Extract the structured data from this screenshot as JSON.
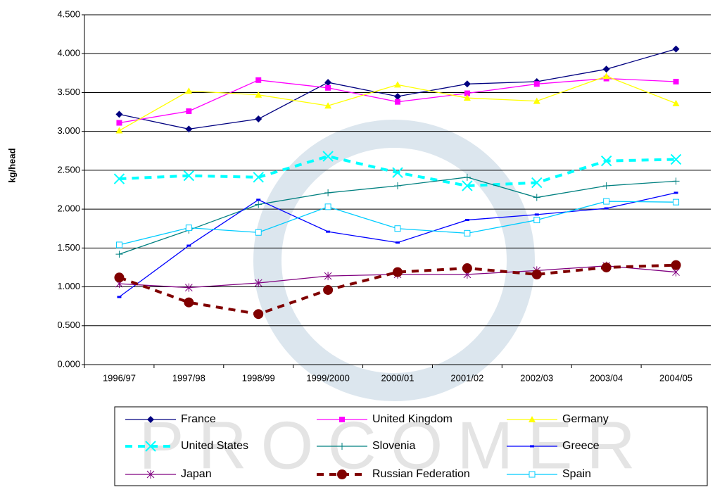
{
  "chart_data": {
    "type": "line",
    "y_label": "kg/head",
    "watermark": "PROCOMER",
    "categories": [
      "1996/97",
      "1997/98",
      "1998/99",
      "1999/2000",
      "2000/01",
      "2001/02",
      "2002/03",
      "2003/04",
      "2004/05"
    ],
    "ylim": [
      0,
      4.5
    ],
    "yticks": [
      {
        "value": 0,
        "label": "0.000"
      },
      {
        "value": 0.5,
        "label": "0.500"
      },
      {
        "value": 1,
        "label": "1.000"
      },
      {
        "value": 1.5,
        "label": "1.500"
      },
      {
        "value": 2,
        "label": "2.000"
      },
      {
        "value": 2.5,
        "label": "2.500"
      },
      {
        "value": 3,
        "label": "3.000"
      },
      {
        "value": 3.5,
        "label": "3.500"
      },
      {
        "value": 4,
        "label": "4.000"
      },
      {
        "value": 4.5,
        "label": "4.500"
      }
    ],
    "grid": true,
    "legend": "bottom",
    "series": [
      {
        "name": "France",
        "color": "#000080",
        "marker": "diamond",
        "dashed": false,
        "values": [
          3.22,
          3.03,
          3.16,
          3.63,
          3.45,
          3.61,
          3.64,
          3.8,
          4.06
        ]
      },
      {
        "name": "United Kingdom",
        "color": "#ff00ff",
        "marker": "square",
        "dashed": false,
        "values": [
          3.11,
          3.26,
          3.66,
          3.56,
          3.38,
          3.49,
          3.61,
          3.68,
          3.64
        ]
      },
      {
        "name": "Germany",
        "color": "#ffff00",
        "marker": "triangle",
        "dashed": false,
        "values": [
          3.01,
          3.52,
          3.47,
          3.33,
          3.6,
          3.43,
          3.39,
          3.71,
          3.36
        ]
      },
      {
        "name": "United States",
        "color": "#00ffff",
        "marker": "x",
        "dashed": true,
        "values": [
          2.39,
          2.43,
          2.41,
          2.68,
          2.47,
          2.3,
          2.34,
          2.62,
          2.64
        ]
      },
      {
        "name": "Slovenia",
        "color": "#008080",
        "marker": "plus",
        "dashed": false,
        "values": [
          1.42,
          1.73,
          2.06,
          2.21,
          2.3,
          2.41,
          2.15,
          2.3,
          2.36
        ]
      },
      {
        "name": "Greece",
        "color": "#0000ff",
        "marker": "dash",
        "dashed": false,
        "values": [
          0.87,
          1.53,
          2.12,
          1.71,
          1.57,
          1.86,
          1.93,
          2.01,
          2.21
        ]
      },
      {
        "name": "Japan",
        "color": "#800080",
        "marker": "star",
        "dashed": false,
        "values": [
          1.04,
          0.99,
          1.05,
          1.14,
          1.16,
          1.16,
          1.21,
          1.27,
          1.19
        ]
      },
      {
        "name": "Russian Federation",
        "color": "#800000",
        "marker": "circle",
        "dashed": true,
        "values": [
          1.12,
          0.8,
          0.65,
          0.96,
          1.19,
          1.24,
          1.16,
          1.25,
          1.28
        ]
      },
      {
        "name": "Spain",
        "color": "#00ccff",
        "marker": "opensquare",
        "dashed": false,
        "values": [
          1.54,
          1.76,
          1.7,
          2.03,
          1.75,
          1.69,
          1.86,
          2.1,
          2.09
        ]
      }
    ]
  }
}
